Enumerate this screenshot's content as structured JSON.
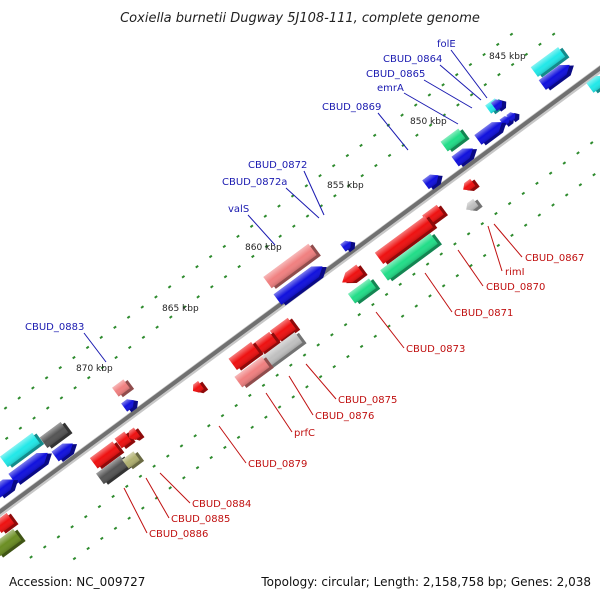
{
  "title": "Coxiella burnetii Dugway 5J108-111, complete genome",
  "footer": {
    "accession": "Accession: NC_009727",
    "summary": "Topology: circular; Length: 2,158,758 bp; Genes: 2,038"
  },
  "ticks": [
    "845 kbp",
    "850 kbp",
    "855 kbp",
    "860 kbp",
    "865 kbp",
    "870 kbp"
  ],
  "labels_top": [
    "folE",
    "CBUD_0864",
    "CBUD_0865",
    "emrA",
    "CBUD_0869",
    "CBUD_0872",
    "CBUD_0872a",
    "valS",
    "CBUD_0883"
  ],
  "labels_bottom": [
    "CBUD_0867",
    "rimI",
    "CBUD_0870",
    "CBUD_0871",
    "CBUD_0873",
    "CBUD_0875",
    "CBUD_0876",
    "prfC",
    "CBUD_0879",
    "CBUD_0884",
    "CBUD_0885",
    "CBUD_0886"
  ],
  "colors": {
    "red": "#ee1111",
    "pink": "#f08080",
    "blue": "#1111dd",
    "cyan": "#22e8e8",
    "green": "#22dd88",
    "gray": "#c0c0c0",
    "dark": "#555555",
    "olive": "#b0b070",
    "darkolive": "#6b8e23",
    "label_blue": "#1a1ab0",
    "label_red": "#c01010"
  }
}
